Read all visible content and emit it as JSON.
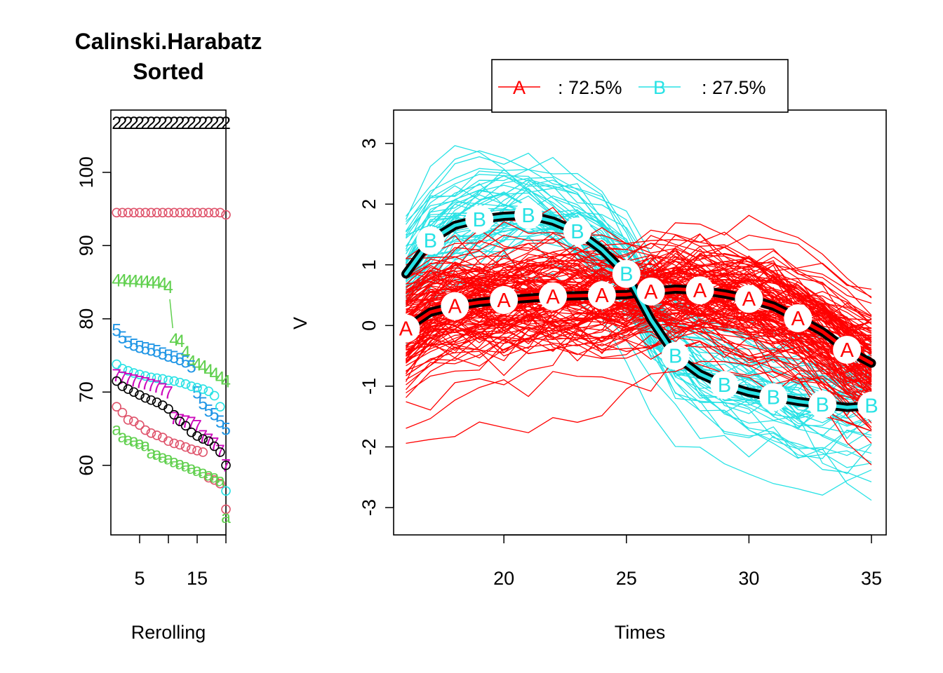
{
  "chart_data": [
    {
      "type": "scatter",
      "title": "Calinski.Harabatz",
      "subtitle": "Sorted",
      "xlabel": "Rerolling",
      "ylabel": "",
      "xlim": [
        0,
        20
      ],
      "ylim": [
        50.5,
        108.5
      ],
      "x_ticks": [
        5,
        15
      ],
      "y_ticks": [
        60,
        70,
        80,
        90,
        100
      ],
      "grid": false,
      "series": [
        {
          "label": "2",
          "color": "#000000",
          "values": [
            106.8,
            106.8,
            106.8,
            106.8,
            106.8,
            106.8,
            106.8,
            106.8,
            106.8,
            106.8,
            106.8,
            106.8,
            106.8,
            106.8,
            106.8,
            106.8,
            106.8,
            106.8,
            106.8,
            106.8
          ]
        },
        {
          "label": "o",
          "color": "#DF536B",
          "values": [
            94.5,
            94.5,
            94.5,
            94.5,
            94.5,
            94.5,
            94.5,
            94.5,
            94.5,
            94.5,
            94.5,
            94.5,
            94.5,
            94.5,
            94.5,
            94.5,
            94.5,
            94.5,
            94.5,
            94.2
          ]
        },
        {
          "label": "4",
          "color": "#61D04F",
          "values": [
            85.3,
            85.3,
            85.2,
            85.2,
            85.1,
            85.1,
            85.0,
            85.0,
            84.8,
            84.4,
            null,
            null,
            null,
            null,
            null,
            null,
            null,
            null,
            null,
            null
          ]
        },
        {
          "label": "4",
          "color": "#61D04F",
          "values": [
            null,
            null,
            null,
            null,
            null,
            null,
            null,
            null,
            null,
            null,
            77.2,
            77.0,
            75.5,
            74.2,
            73.8,
            73.5,
            73.0,
            72.5,
            72.0,
            71.5
          ]
        },
        {
          "label": "5",
          "color": "#2297E6",
          "values": [
            78.5,
            77.5,
            76.8,
            76.5,
            76.2,
            76.0,
            75.8,
            75.6,
            75.3,
            75.0,
            74.8,
            74.5,
            74.2,
            73.5,
            70.0,
            68.5,
            67.5,
            67.0,
            66.0,
            65.0
          ]
        },
        {
          "label": "o",
          "color": "#28E2E5",
          "values": [
            73.8,
            73.2,
            72.9,
            72.6,
            72.4,
            72.2,
            72.0,
            71.9,
            71.8,
            71.6,
            71.5,
            71.3,
            71.1,
            70.8,
            70.6,
            70.4,
            70.1,
            69.5,
            68.0,
            56.5
          ]
        },
        {
          "label": "7",
          "color": "#CD0BBC",
          "values": [
            72.3,
            72.0,
            71.8,
            71.6,
            71.4,
            71.2,
            71.0,
            70.8,
            70.4,
            70.0,
            66.5,
            66.2,
            66.0,
            65.8,
            65.4,
            64.0,
            63.5,
            63.0,
            62.0,
            60.0
          ]
        },
        {
          "label": "o",
          "color": "#000000",
          "values": [
            71.5,
            70.8,
            70.4,
            70.0,
            69.6,
            69.2,
            68.9,
            68.6,
            68.2,
            67.7,
            66.9,
            66.0,
            65.4,
            64.5,
            64.0,
            63.6,
            63.3,
            62.6,
            61.8,
            60.0
          ]
        },
        {
          "label": "o",
          "color": "#DF536B",
          "values": [
            68.0,
            67.2,
            66.2,
            66.0,
            65.5,
            64.8,
            64.4,
            64.1,
            63.8,
            63.3,
            63.0,
            62.8,
            62.5,
            62.2,
            62.0,
            61.8,
            58.3,
            58.0,
            57.5,
            54.0
          ]
        },
        {
          "label": "a",
          "color": "#61D04F",
          "values": [
            65.0,
            64.0,
            63.6,
            63.4,
            63.1,
            62.8,
            61.8,
            61.6,
            61.2,
            61.0,
            60.6,
            60.3,
            60.0,
            59.7,
            59.4,
            59.1,
            58.8,
            58.5,
            58.0,
            53.0
          ]
        }
      ]
    },
    {
      "type": "line",
      "title": "",
      "xlabel": "Times",
      "ylabel": "V",
      "xlim": [
        15.5,
        35.6
      ],
      "ylim": [
        -3.45,
        3.55
      ],
      "x_ticks": [
        20,
        25,
        30,
        35
      ],
      "y_ticks": [
        -3,
        -2,
        -1,
        0,
        1,
        2,
        3
      ],
      "grid": false,
      "legend": {
        "placement": "top-center",
        "entries": [
          {
            "symbol": "A",
            "text": ": 72.5%",
            "color": "#FF0000"
          },
          {
            "symbol": "B",
            "text": ": 27.5%",
            "color": "#28E2E5"
          }
        ]
      },
      "x": [
        16,
        17,
        18,
        19,
        20,
        21,
        22,
        23,
        24,
        25,
        26,
        27,
        28,
        29,
        30,
        31,
        32,
        33,
        34,
        35
      ],
      "series": [
        {
          "name": "A",
          "color": "#FF0000",
          "share": 72.5,
          "mean_values": [
            -0.05,
            0.22,
            0.32,
            0.38,
            0.42,
            0.45,
            0.48,
            0.49,
            0.5,
            0.51,
            0.56,
            0.6,
            0.58,
            0.52,
            0.44,
            0.32,
            0.12,
            -0.1,
            -0.4,
            -0.62
          ],
          "marker_x": [
            16,
            18,
            20,
            22,
            24,
            26,
            28,
            30,
            32,
            34
          ]
        },
        {
          "name": "B",
          "color": "#28E2E5",
          "share": 27.5,
          "mean_values": [
            0.85,
            1.4,
            1.65,
            1.75,
            1.8,
            1.82,
            1.72,
            1.55,
            1.25,
            0.85,
            0.1,
            -0.5,
            -0.8,
            -0.98,
            -1.1,
            -1.18,
            -1.25,
            -1.3,
            -1.35,
            -1.32
          ],
          "marker_x": [
            17,
            19,
            21,
            23,
            25,
            27,
            29,
            31,
            33,
            35
          ]
        }
      ]
    }
  ],
  "colors": {
    "axis": "#000000",
    "halo": "#FFFFFF"
  }
}
